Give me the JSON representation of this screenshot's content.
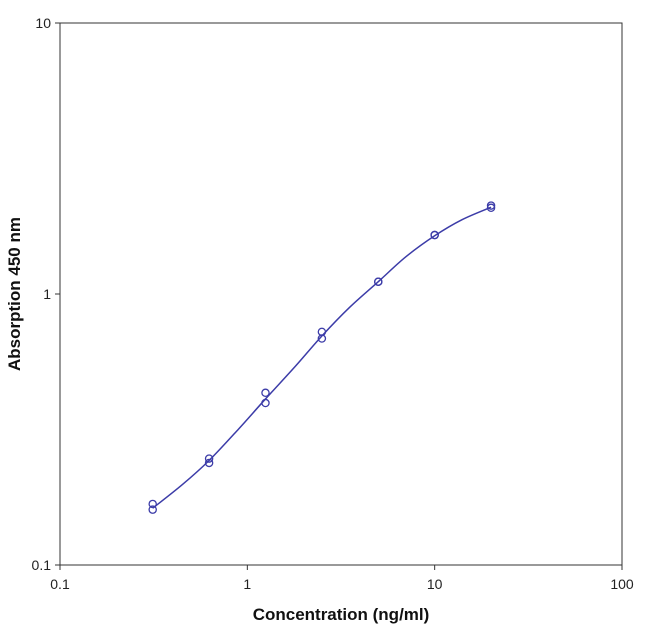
{
  "chart_data": {
    "type": "scatter",
    "title": "",
    "xlabel": "Concentration (ng/ml)",
    "ylabel": "Absorption 450 nm",
    "xscale": "log",
    "yscale": "log",
    "xlim": [
      0.1,
      100
    ],
    "ylim": [
      0.1,
      10
    ],
    "xticks": [
      0.1,
      1,
      10,
      100
    ],
    "xtick_labels": [
      "0.1",
      "1",
      "10",
      "100"
    ],
    "yticks": [
      0.1,
      1,
      10
    ],
    "ytick_labels": [
      "0.1",
      "1",
      "10"
    ],
    "grid": false,
    "legend": "none",
    "series": [
      {
        "marker": "open-circle",
        "color": "#3c3ca8",
        "points": [
          {
            "x": 0.3125,
            "y": 0.168
          },
          {
            "x": 0.3125,
            "y": 0.16
          },
          {
            "x": 0.625,
            "y": 0.247
          },
          {
            "x": 0.625,
            "y": 0.238
          },
          {
            "x": 1.25,
            "y": 0.432
          },
          {
            "x": 1.25,
            "y": 0.396
          },
          {
            "x": 2.5,
            "y": 0.725
          },
          {
            "x": 2.5,
            "y": 0.685
          },
          {
            "x": 5,
            "y": 1.11
          },
          {
            "x": 5,
            "y": 1.11
          },
          {
            "x": 10,
            "y": 1.65
          },
          {
            "x": 10,
            "y": 1.65
          },
          {
            "x": 20,
            "y": 2.12
          },
          {
            "x": 20,
            "y": 2.08
          }
        ]
      }
    ],
    "fit_curve": {
      "color": "#3c3ca8",
      "points": [
        {
          "x": 0.3125,
          "y": 0.162
        },
        {
          "x": 0.45,
          "y": 0.198
        },
        {
          "x": 0.625,
          "y": 0.243
        },
        {
          "x": 0.9,
          "y": 0.318
        },
        {
          "x": 1.25,
          "y": 0.41
        },
        {
          "x": 1.8,
          "y": 0.54
        },
        {
          "x": 2.5,
          "y": 0.7
        },
        {
          "x": 3.5,
          "y": 0.89
        },
        {
          "x": 5,
          "y": 1.11
        },
        {
          "x": 7,
          "y": 1.37
        },
        {
          "x": 10,
          "y": 1.64
        },
        {
          "x": 14,
          "y": 1.88
        },
        {
          "x": 20,
          "y": 2.09
        }
      ]
    }
  }
}
